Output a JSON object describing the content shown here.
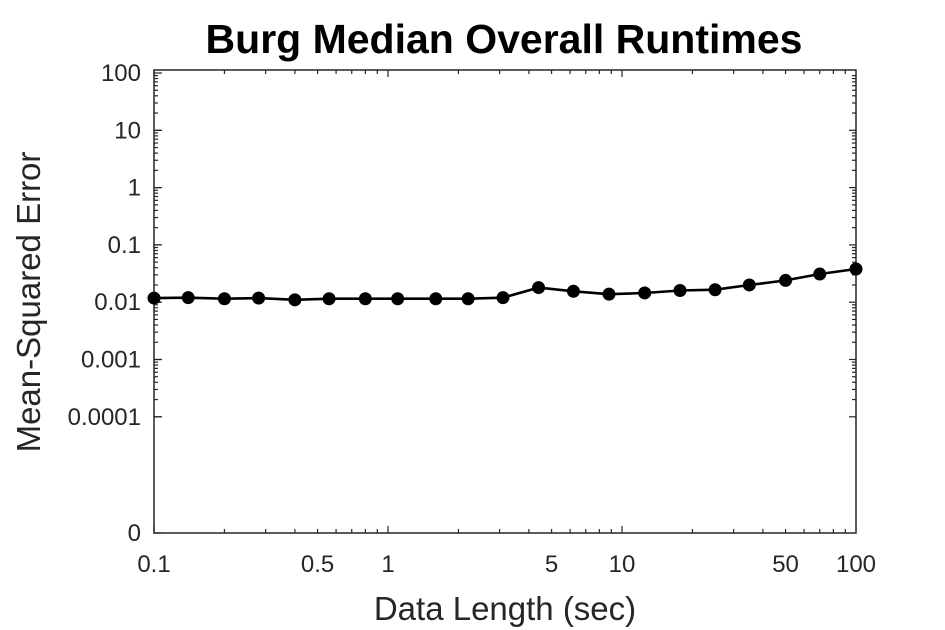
{
  "chart_data": {
    "type": "line",
    "title": "Burg Median Overall Runtimes",
    "xlabel": "Data Length (sec)",
    "ylabel": "Mean-Squared Error",
    "x_scale": "log",
    "y_scale": "log",
    "xlim": [
      0.1,
      100
    ],
    "ylim": [
      0,
      100
    ],
    "x_ticks": [
      0.1,
      0.5,
      1,
      5,
      10,
      50,
      100
    ],
    "x_tick_labels": [
      "0.1",
      "0.5",
      "1",
      "5",
      "10",
      "50",
      "100"
    ],
    "y_ticks": [
      0,
      0.0001,
      0.001,
      0.01,
      0.1,
      1,
      10,
      100
    ],
    "y_tick_labels": [
      "0",
      "0.0001",
      "0.001",
      "0.01",
      "0.1",
      "1",
      "10",
      "100"
    ],
    "grid": false,
    "color": "#000000",
    "series": [
      {
        "x": [
          0.1,
          0.14,
          0.2,
          0.28,
          0.4,
          0.56,
          0.8,
          1.1,
          1.6,
          2.2,
          3.1,
          4.4,
          6.2,
          8.8,
          12.5,
          17.7,
          25,
          35,
          50,
          70,
          100
        ],
        "y": [
          0.0118,
          0.012,
          0.0115,
          0.0118,
          0.011,
          0.0115,
          0.0115,
          0.0115,
          0.0115,
          0.0115,
          0.012,
          0.018,
          0.0155,
          0.0138,
          0.0145,
          0.016,
          0.0165,
          0.02,
          0.024,
          0.031,
          0.038
        ]
      }
    ]
  }
}
